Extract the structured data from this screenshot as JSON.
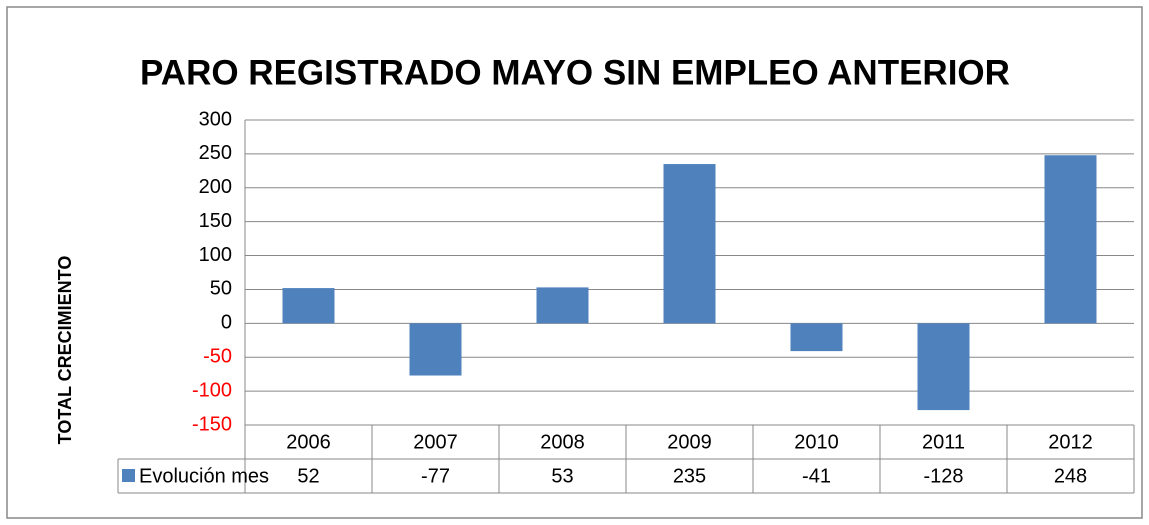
{
  "chart_data": {
    "type": "bar",
    "title": "PARO REGISTRADO MAYO  SIN EMPLEO ANTERIOR",
    "y_label": "TOTAL CRECIMIENTO",
    "categories": [
      "2006",
      "2007",
      "2008",
      "2009",
      "2010",
      "2011",
      "2012"
    ],
    "series": [
      {
        "name": "Evolución mes",
        "color": "#4f81bd",
        "values": [
          52,
          -77,
          53,
          235,
          -41,
          -128,
          248
        ]
      }
    ],
    "ylim": [
      -150,
      300
    ],
    "yticks": [
      -150,
      -100,
      -50,
      0,
      50,
      100,
      150,
      200,
      250,
      300
    ],
    "grid": true,
    "negative_tick_color": "#ff0000",
    "data_table": true
  }
}
